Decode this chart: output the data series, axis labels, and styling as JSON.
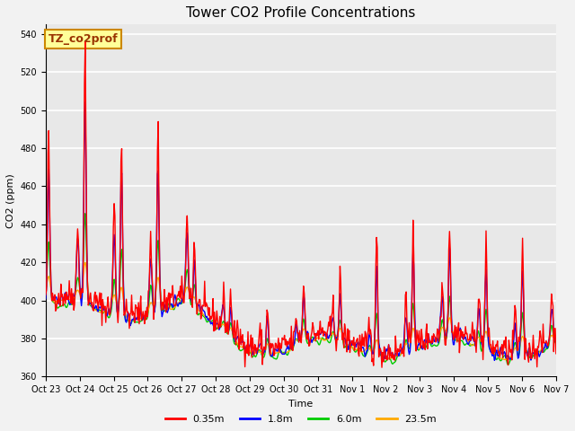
{
  "title": "Tower CO2 Profile Concentrations",
  "xlabel": "Time",
  "ylabel": "CO2 (ppm)",
  "ylim": [
    360,
    545
  ],
  "yticks": [
    360,
    380,
    400,
    420,
    440,
    460,
    480,
    500,
    520,
    540
  ],
  "xtick_labels": [
    "Oct 23",
    "Oct 24",
    "Oct 25",
    "Oct 26",
    "Oct 27",
    "Oct 28",
    "Oct 29",
    "Oct 30",
    "Oct 31",
    "Nov 1",
    "Nov 2",
    "Nov 3",
    "Nov 4",
    "Nov 5",
    "Nov 6",
    "Nov 7"
  ],
  "series_colors": [
    "#ff0000",
    "#0000ff",
    "#00cc00",
    "#ffaa00"
  ],
  "series_labels": [
    "0.35m",
    "1.8m",
    "6.0m",
    "23.5m"
  ],
  "series_linewidths": [
    1.0,
    1.0,
    1.0,
    1.0
  ],
  "annotation_text": "TZ_co2prof",
  "annotation_bbox_face": "#ffff99",
  "annotation_bbox_edge": "#cc8800",
  "annotation_fontsize": 9,
  "annotation_fontweight": "bold",
  "annotation_color": "#993300",
  "title_fontsize": 11,
  "legend_fontsize": 8,
  "tick_fontsize": 7,
  "plot_bg_color": "#e8e8e8",
  "fig_bg_color": "#f2f2f2",
  "grid_color": "#ffffff",
  "n_points": 672,
  "seed": 42
}
